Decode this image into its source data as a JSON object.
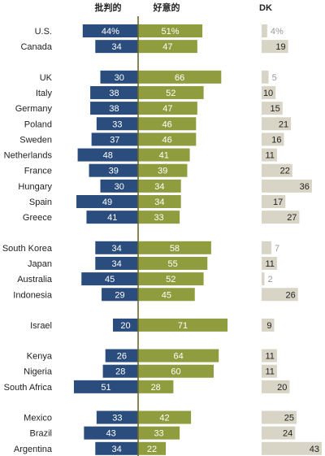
{
  "chart_data": {
    "type": "bar",
    "headers": {
      "unfavorable": "批判的",
      "favorable": "好意的",
      "dk": "DK"
    },
    "colors": {
      "unfavorable": "#2a4d7e",
      "favorable": "#8f9d3e",
      "dk": "#d9d5c6",
      "divider": "#6b6b2a"
    },
    "rows": [
      {
        "country": "U.S.",
        "unfavorable": 44,
        "favorable": 51,
        "dk": 4,
        "unfavorable_label": "44%",
        "favorable_label": "51%",
        "dk_label": "4%"
      },
      {
        "country": "Canada",
        "unfavorable": 34,
        "favorable": 47,
        "dk": 19
      },
      {
        "gap": true
      },
      {
        "country": "UK",
        "unfavorable": 30,
        "favorable": 66,
        "dk": 5
      },
      {
        "country": "Italy",
        "unfavorable": 38,
        "favorable": 52,
        "dk": 10
      },
      {
        "country": "Germany",
        "unfavorable": 38,
        "favorable": 47,
        "dk": 15
      },
      {
        "country": "Poland",
        "unfavorable": 33,
        "favorable": 46,
        "dk": 21
      },
      {
        "country": "Sweden",
        "unfavorable": 37,
        "favorable": 46,
        "dk": 16
      },
      {
        "country": "Netherlands",
        "unfavorable": 48,
        "favorable": 41,
        "dk": 11
      },
      {
        "country": "France",
        "unfavorable": 39,
        "favorable": 39,
        "dk": 22
      },
      {
        "country": "Hungary",
        "unfavorable": 30,
        "favorable": 34,
        "dk": 36
      },
      {
        "country": "Spain",
        "unfavorable": 49,
        "favorable": 34,
        "dk": 17
      },
      {
        "country": "Greece",
        "unfavorable": 41,
        "favorable": 33,
        "dk": 27
      },
      {
        "gap": true
      },
      {
        "country": "South Korea",
        "unfavorable": 34,
        "favorable": 58,
        "dk": 7
      },
      {
        "country": "Japan",
        "unfavorable": 34,
        "favorable": 55,
        "dk": 11
      },
      {
        "country": "Australia",
        "unfavorable": 45,
        "favorable": 52,
        "dk": 2
      },
      {
        "country": "Indonesia",
        "unfavorable": 29,
        "favorable": 45,
        "dk": 26
      },
      {
        "gap": true
      },
      {
        "country": "Israel",
        "unfavorable": 20,
        "favorable": 71,
        "dk": 9
      },
      {
        "gap": true
      },
      {
        "country": "Kenya",
        "unfavorable": 26,
        "favorable": 64,
        "dk": 11
      },
      {
        "country": "Nigeria",
        "unfavorable": 28,
        "favorable": 60,
        "dk": 11
      },
      {
        "country": "South Africa",
        "unfavorable": 51,
        "favorable": 28,
        "dk": 20
      },
      {
        "gap": true
      },
      {
        "country": "Mexico",
        "unfavorable": 33,
        "favorable": 42,
        "dk": 25
      },
      {
        "country": "Brazil",
        "unfavorable": 43,
        "favorable": 33,
        "dk": 24
      },
      {
        "country": "Argentina",
        "unfavorable": 34,
        "favorable": 22,
        "dk": 43
      }
    ]
  }
}
